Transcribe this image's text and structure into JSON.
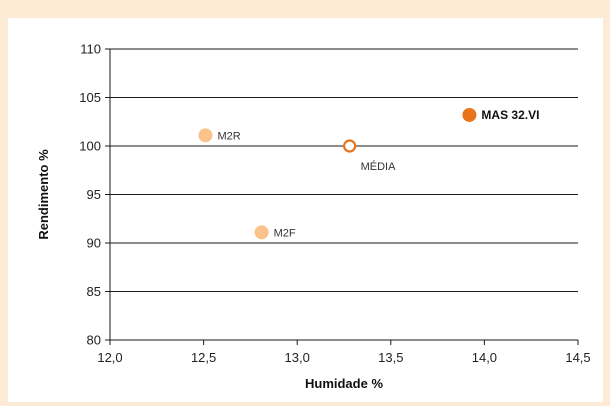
{
  "chart_data": {
    "type": "scatter",
    "title": "",
    "xlabel": "Humidade %",
    "ylabel": "Rendimento %",
    "xlim": [
      12.0,
      14.5
    ],
    "ylim": [
      80,
      110
    ],
    "x_ticks": [
      12.0,
      12.5,
      13.0,
      13.5,
      14.0,
      14.5
    ],
    "x_tick_labels": [
      "12,0",
      "12,5",
      "13,0",
      "13,5",
      "14,0",
      "14,5"
    ],
    "y_ticks": [
      80,
      85,
      90,
      95,
      100,
      105,
      110
    ],
    "y_tick_labels": [
      "80",
      "85",
      "90",
      "95",
      "100",
      "105",
      "110"
    ],
    "grid": {
      "horizontal": true,
      "vertical": false
    },
    "points": [
      {
        "label": "M2R",
        "x": 12.51,
        "y": 101.1,
        "color": "#f9c38b",
        "style": "filled",
        "label_weight": "normal",
        "label_placement": "right"
      },
      {
        "label": "M2F",
        "x": 12.81,
        "y": 91.1,
        "color": "#f9c38b",
        "style": "filled",
        "label_weight": "normal",
        "label_placement": "right"
      },
      {
        "label": "MÉDIA",
        "x": 13.28,
        "y": 100.0,
        "color": "#e8731a",
        "style": "hollow",
        "label_weight": "normal",
        "label_placement": "below-right"
      },
      {
        "label": "MAS 32.VI",
        "x": 13.92,
        "y": 103.2,
        "color": "#e8731a",
        "style": "filled",
        "label_weight": "bold",
        "label_placement": "right"
      }
    ]
  }
}
